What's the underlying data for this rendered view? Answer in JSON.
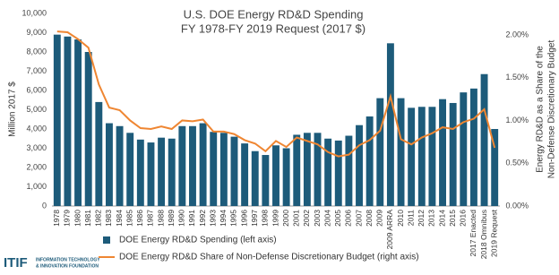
{
  "chart_data": {
    "type": "bar_line",
    "title": [
      "U.S. DOE Energy RD&D Spending",
      "FY 1978-FY 2019 Request (2017 $)"
    ],
    "y_label": "Million 2017 $",
    "y2_label": [
      "Energy RD&D as a Share of the",
      "Non-Defense Discretionary Budget"
    ],
    "categories": [
      "1978",
      "1979",
      "1980",
      "1981",
      "1982",
      "1983",
      "1984",
      "1985",
      "1986",
      "1987",
      "1988",
      "1989",
      "1990",
      "1991",
      "1992",
      "1993",
      "1994",
      "1995",
      "1996",
      "1997",
      "1998",
      "1999",
      "2000",
      "2001",
      "2002",
      "2003",
      "2004",
      "2005",
      "2006",
      "2007",
      "2008",
      "2009",
      "2009 ARRA",
      "2010",
      "2011",
      "2012",
      "2013",
      "2014",
      "2015",
      "2016",
      "2017 Enacted",
      "2018 Omnibus",
      "2019 Request"
    ],
    "series": [
      {
        "name": "DOE Energy RD&D Spending (left axis)",
        "color": "#1d5b7a",
        "type": "bar",
        "values": [
          8900,
          8800,
          8650,
          8000,
          5400,
          4300,
          4150,
          3800,
          3450,
          3300,
          3550,
          3500,
          4150,
          4150,
          4300,
          3850,
          3800,
          3600,
          3250,
          2850,
          2650,
          3150,
          3000,
          3700,
          3800,
          3800,
          3500,
          3400,
          3650,
          4200,
          4650,
          5600,
          8450,
          5600,
          5100,
          5150,
          5150,
          5550,
          5350,
          5900,
          6100,
          6850,
          4000
        ]
      },
      {
        "name": "DOE Energy RD&D Share of Non-Defense Discretionary Budget (right axis)",
        "color": "#ef8632",
        "type": "line",
        "axis": "y2",
        "values": [
          2.04,
          2.03,
          1.95,
          1.85,
          1.42,
          1.15,
          1.12,
          1.0,
          0.91,
          0.9,
          0.93,
          0.9,
          1.0,
          0.99,
          1.01,
          0.87,
          0.87,
          0.84,
          0.77,
          0.73,
          0.64,
          0.76,
          0.69,
          0.8,
          0.76,
          0.72,
          0.63,
          0.58,
          0.6,
          0.71,
          0.77,
          0.88,
          1.28,
          0.78,
          0.72,
          0.8,
          0.85,
          0.92,
          0.9,
          0.98,
          1.02,
          1.13,
          0.68
        ]
      }
    ],
    "ylim": [
      0,
      10000
    ],
    "yticks": [
      0,
      {
        "value": 1000,
        "label": "1,000"
      },
      {
        "value": 2000,
        "label": "2,000"
      },
      {
        "value": 3000,
        "label": "3,000"
      },
      {
        "value": 4000,
        "label": "4,000"
      },
      {
        "value": 5000,
        "label": "5,000"
      },
      {
        "value": 6000,
        "label": "6,000"
      },
      {
        "value": 7000,
        "label": "7,000"
      },
      {
        "value": 8000,
        "label": "8,000"
      },
      {
        "value": 9000,
        "label": "9,000"
      },
      {
        "value": 10000,
        "label": "10,000"
      }
    ],
    "y2lim": [
      0,
      2.25
    ],
    "y2ticks": [
      {
        "value": 0,
        "label": "0.00%"
      },
      {
        "value": 0.5,
        "label": "0.50%"
      },
      {
        "value": 1,
        "label": "1.00%"
      },
      {
        "value": 1.5,
        "label": "1.50%"
      },
      {
        "value": 2,
        "label": "2.00%"
      }
    ],
    "grid": false
  },
  "logo": {
    "name": "ITIF",
    "lines": [
      "INFORMATION TECHNOLOGY",
      "& INNOVATION FOUNDATION"
    ]
  }
}
